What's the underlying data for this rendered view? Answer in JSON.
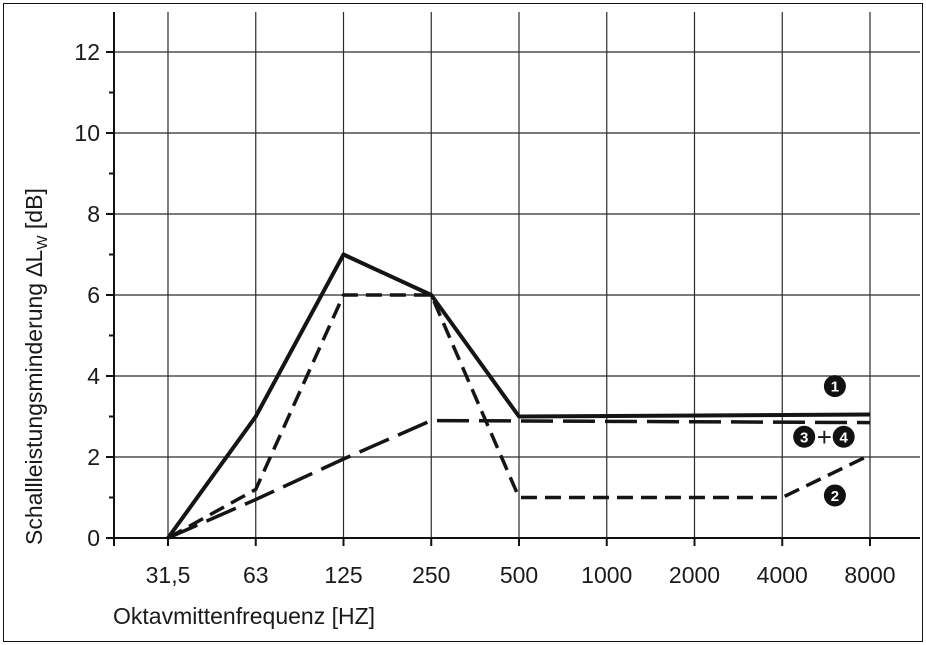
{
  "chart_data": {
    "type": "line",
    "categories": [
      "31,5",
      "63",
      "125",
      "250",
      "500",
      "1000",
      "2000",
      "4000",
      "8000"
    ],
    "xlabel": "Oktavmittenfrequenz [HZ]",
    "ylabel_prefix": "Schallleistungsminderung ∆L",
    "ylabel_sub": "W",
    "ylabel_suffix": " [dB]",
    "ylim": [
      0,
      12.5
    ],
    "yticks": [
      0,
      2,
      4,
      6,
      8,
      10,
      12
    ],
    "grid": true,
    "series": [
      {
        "name": "1",
        "style": "solid",
        "x": [
          0,
          1,
          2,
          3,
          4,
          8
        ],
        "values": [
          0,
          3,
          7,
          6,
          3,
          3.05
        ]
      },
      {
        "name": "2",
        "style": "dashed",
        "x": [
          0,
          1,
          2,
          3,
          4,
          7,
          8
        ],
        "values": [
          0,
          1.2,
          6,
          6,
          1,
          1,
          2.05
        ]
      },
      {
        "name": "3+4",
        "style": "long-dashed",
        "x": [
          0,
          1,
          2,
          3,
          8
        ],
        "values": [
          0,
          0.95,
          1.95,
          2.9,
          2.85
        ]
      }
    ],
    "markers": [
      {
        "label": "1",
        "x": 7.6,
        "y": 3.75
      },
      {
        "label": "3",
        "x": 7.25,
        "y": 2.5
      },
      {
        "label": "+",
        "x": 7.48,
        "y": 2.5
      },
      {
        "label": "4",
        "x": 7.7,
        "y": 2.5
      },
      {
        "label": "2",
        "x": 7.6,
        "y": 1.05
      }
    ]
  }
}
